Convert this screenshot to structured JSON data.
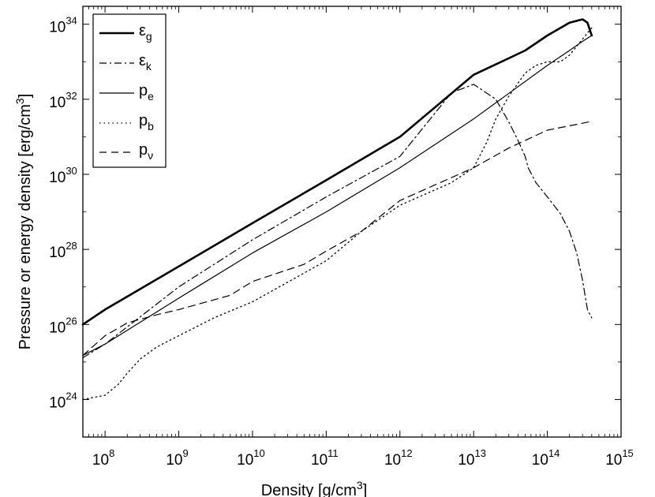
{
  "chart_data": {
    "type": "line",
    "xscale": "log",
    "yscale": "log",
    "xlim": [
      50000000.0,
      1000000000000000.0
    ],
    "ylim": [
      1e+23,
      3e+34
    ],
    "xticks": [
      {
        "value": 100000000.0,
        "base": "10",
        "exp": "8"
      },
      {
        "value": 1000000000.0,
        "base": "10",
        "exp": "9"
      },
      {
        "value": 10000000000.0,
        "base": "10",
        "exp": "10"
      },
      {
        "value": 100000000000.0,
        "base": "10",
        "exp": "11"
      },
      {
        "value": 1000000000000.0,
        "base": "10",
        "exp": "12"
      },
      {
        "value": 10000000000000.0,
        "base": "10",
        "exp": "13"
      },
      {
        "value": 100000000000000.0,
        "base": "10",
        "exp": "14"
      },
      {
        "value": 1000000000000000.0,
        "base": "10",
        "exp": "15"
      }
    ],
    "yticks": [
      {
        "value": 1e+24,
        "base": "10",
        "exp": "24"
      },
      {
        "value": 1e+26,
        "base": "10",
        "exp": "26"
      },
      {
        "value": 1e+28,
        "base": "10",
        "exp": "28"
      },
      {
        "value": 1e+30,
        "base": "10",
        "exp": "30"
      },
      {
        "value": 1e+32,
        "base": "10",
        "exp": "32"
      },
      {
        "value": 1e+34,
        "base": "10",
        "exp": "34"
      }
    ],
    "xlabel": {
      "text": "Density [g/cm",
      "sup": "3",
      "tail": "]"
    },
    "ylabel": {
      "text": "Pressure or energy density [erg/cm",
      "sup": "3",
      "tail": "]"
    },
    "grid": false,
    "legend_position": "top-left",
    "series": [
      {
        "name": "ε",
        "sub": "g",
        "style": "solid-thick",
        "x": [
          50000000.0,
          100000000.0,
          1000000000.0,
          10000000000.0,
          100000000000.0,
          1000000000000.0,
          10000000000000.0,
          50000000000000.0,
          100000000000000.0,
          200000000000000.0,
          300000000000000.0,
          350000000000000.0,
          400000000000000.0
        ],
        "y": [
          1e+26,
          2.5e+26,
          3.5e+27,
          5e+28,
          7e+29,
          1e+31,
          4.5e+32,
          2e+33,
          5e+33,
          1.1e+34,
          1.35e+34,
          1.1e+34,
          5e+33
        ]
      },
      {
        "name": "ε",
        "sub": "k",
        "style": "dash-dot",
        "x": [
          50000000.0,
          100000000.0,
          1000000000.0,
          10000000000.0,
          100000000000.0,
          1000000000000.0,
          5000000000000.0,
          10000000000000.0,
          20000000000000.0,
          30000000000000.0,
          40000000000000.0,
          50000000000000.0,
          55000000000000.0,
          70000000000000.0,
          100000000000000.0,
          150000000000000.0,
          200000000000000.0,
          250000000000000.0,
          300000000000000.0,
          350000000000000.0,
          400000000000000.0
        ],
        "y": [
          1.3e+25,
          3e+25,
          1e+27,
          1.8e+28,
          2.5e+29,
          3e+30,
          1.5e+32,
          2.5e+32,
          1e+32,
          2.5e+31,
          8e+30,
          3e+30,
          1.5e+30,
          6e+29,
          2.5e+29,
          9e+28,
          3e+28,
          8e+27,
          1.5e+27,
          2.5e+26,
          1.5e+26
        ]
      },
      {
        "name": "p",
        "sub": "e",
        "style": "solid-thin",
        "x": [
          50000000.0,
          100000000.0,
          1000000000.0,
          10000000000.0,
          100000000000.0,
          1000000000000.0,
          10000000000000.0,
          100000000000000.0,
          200000000000000.0,
          300000000000000.0,
          400000000000000.0
        ],
        "y": [
          1.5e+25,
          3e+25,
          5e+26,
          8e+27,
          1e+29,
          1.5e+30,
          3e+31,
          8e+32,
          2e+33,
          3.5e+33,
          5e+33
        ]
      },
      {
        "name": "p",
        "sub": "b",
        "style": "dotted",
        "x": [
          50000000.0,
          100000000.0,
          150000000.0,
          200000000.0,
          300000000.0,
          500000000.0,
          1000000000.0,
          3000000000.0,
          10000000000.0,
          100000000000.0,
          300000000000.0,
          1000000000000.0,
          5000000000000.0,
          10000000000000.0,
          15000000000000.0,
          20000000000000.0,
          30000000000000.0,
          50000000000000.0,
          70000000000000.0,
          100000000000000.0,
          150000000000000.0,
          200000000000000.0,
          300000000000000.0,
          400000000000000.0
        ],
        "y": [
          1e+24,
          1.3e+24,
          2.5e+24,
          5e+24,
          1.2e+25,
          2.5e+25,
          5e+25,
          1.5e+26,
          4e+26,
          5e+27,
          3e+28,
          1.5e+29,
          6e+29,
          1.5e+30,
          7e+30,
          3e+31,
          1.2e+32,
          5e+32,
          8e+32,
          1e+33,
          1e+33,
          1.5e+33,
          4e+33,
          8e+33
        ]
      },
      {
        "name": "p",
        "sub": "ν",
        "style": "dashed",
        "x": [
          50000000.0,
          100000000.0,
          200000000.0,
          500000000.0,
          1000000000.0,
          5000000000.0,
          10000000000.0,
          50000000000.0,
          100000000000.0,
          300000000000.0,
          1000000000000.0,
          10000000000000.0,
          30000000000000.0,
          50000000000000.0,
          100000000000000.0,
          300000000000000.0,
          400000000000000.0
        ],
        "y": [
          1.5e+25,
          5e+25,
          1.1e+26,
          1.8e+26,
          2.5e+26,
          6e+26,
          1.4e+27,
          4e+27,
          9e+27,
          3e+28,
          2e+29,
          1.5e+30,
          5e+30,
          8e+30,
          1.5e+31,
          2.3e+31,
          2.6e+31
        ]
      }
    ]
  }
}
